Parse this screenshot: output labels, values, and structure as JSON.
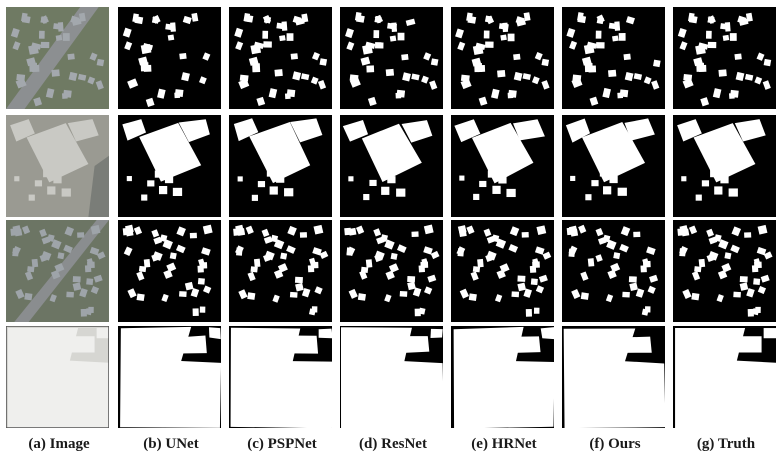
{
  "figure": {
    "captions": [
      "(a) Image",
      "(b) UNet",
      "(c) PSPNet",
      "(d) ResNet",
      "(e) HRNet",
      "(f) Ours",
      "(g) Truth"
    ],
    "rows": [
      {
        "scene": "suburban-houses-road"
      },
      {
        "scene": "industrial-large-building"
      },
      {
        "scene": "dense-suburban-houses"
      },
      {
        "scene": "warehouse-rooftop"
      }
    ],
    "colors": {
      "mask_background": "#000000",
      "mask_building": "#ffffff",
      "caption_text": "#1a1a1a"
    }
  }
}
